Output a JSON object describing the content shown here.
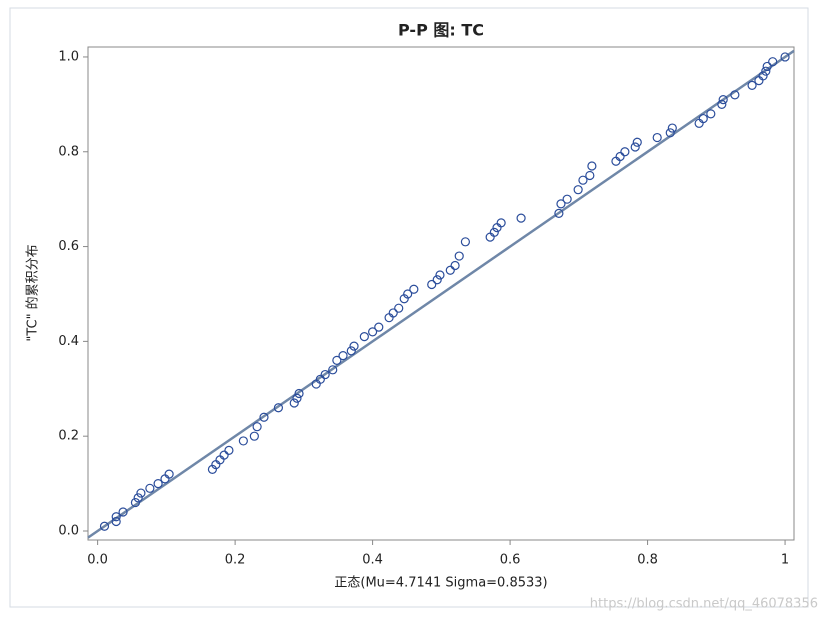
{
  "chart_data": {
    "type": "scatter",
    "title": "P-P 图: TC",
    "x_label": "正态(Mu=4.7141 Sigma=0.8533)",
    "y_label": "\"TC\" 的累积分布",
    "watermark": "https://blog.csdn.net/qq_46078356",
    "xlim": [
      -0.014,
      1.013
    ],
    "ylim": [
      -0.019,
      1.021
    ],
    "xticks": [
      {
        "value": 0,
        "label": "0.0"
      },
      0.2,
      0.4,
      0.6,
      0.8,
      {
        "value": 1,
        "label": "1"
      }
    ],
    "yticks": [
      {
        "value": 0,
        "label": "0.0"
      },
      0.2,
      0.4,
      0.6,
      0.8,
      {
        "value": 1,
        "label": "1.0"
      }
    ],
    "reference_line": {
      "x": [
        -0.014,
        1.013
      ],
      "values": [
        -0.014,
        1.013
      ],
      "color": "#6f87a8"
    },
    "series": [
      {
        "name": "TC",
        "color": "#2b4d9b",
        "x": [
          0.01,
          0.027,
          0.027,
          0.037,
          0.055,
          0.059,
          0.063,
          0.076,
          0.088,
          0.098,
          0.104,
          0.167,
          0.172,
          0.178,
          0.184,
          0.191,
          0.212,
          0.228,
          0.232,
          0.242,
          0.263,
          0.286,
          0.29,
          0.293,
          0.318,
          0.324,
          0.331,
          0.342,
          0.348,
          0.357,
          0.369,
          0.373,
          0.388,
          0.4,
          0.409,
          0.424,
          0.43,
          0.438,
          0.446,
          0.451,
          0.46,
          0.486,
          0.494,
          0.498,
          0.513,
          0.52,
          0.526,
          0.535,
          0.571,
          0.577,
          0.581,
          0.587,
          0.616,
          0.671,
          0.674,
          0.683,
          0.699,
          0.706,
          0.716,
          0.719,
          0.754,
          0.76,
          0.767,
          0.782,
          0.785,
          0.814,
          0.833,
          0.836,
          0.875,
          0.881,
          0.892,
          0.908,
          0.91,
          0.927,
          0.952,
          0.962,
          0.968,
          0.972,
          0.974,
          0.982,
          1.0
        ],
        "values": [
          0.01,
          0.02,
          0.03,
          0.04,
          0.06,
          0.07,
          0.08,
          0.09,
          0.1,
          0.11,
          0.12,
          0.13,
          0.14,
          0.15,
          0.16,
          0.17,
          0.19,
          0.2,
          0.22,
          0.24,
          0.26,
          0.27,
          0.28,
          0.29,
          0.31,
          0.32,
          0.33,
          0.34,
          0.36,
          0.37,
          0.38,
          0.39,
          0.41,
          0.42,
          0.43,
          0.45,
          0.46,
          0.47,
          0.49,
          0.5,
          0.51,
          0.52,
          0.53,
          0.54,
          0.55,
          0.56,
          0.58,
          0.61,
          0.62,
          0.63,
          0.64,
          0.65,
          0.66,
          0.67,
          0.69,
          0.7,
          0.72,
          0.74,
          0.75,
          0.77,
          0.78,
          0.79,
          0.8,
          0.81,
          0.82,
          0.83,
          0.84,
          0.85,
          0.86,
          0.87,
          0.88,
          0.9,
          0.91,
          0.92,
          0.94,
          0.95,
          0.96,
          0.97,
          0.98,
          0.99,
          1.0
        ]
      }
    ]
  }
}
